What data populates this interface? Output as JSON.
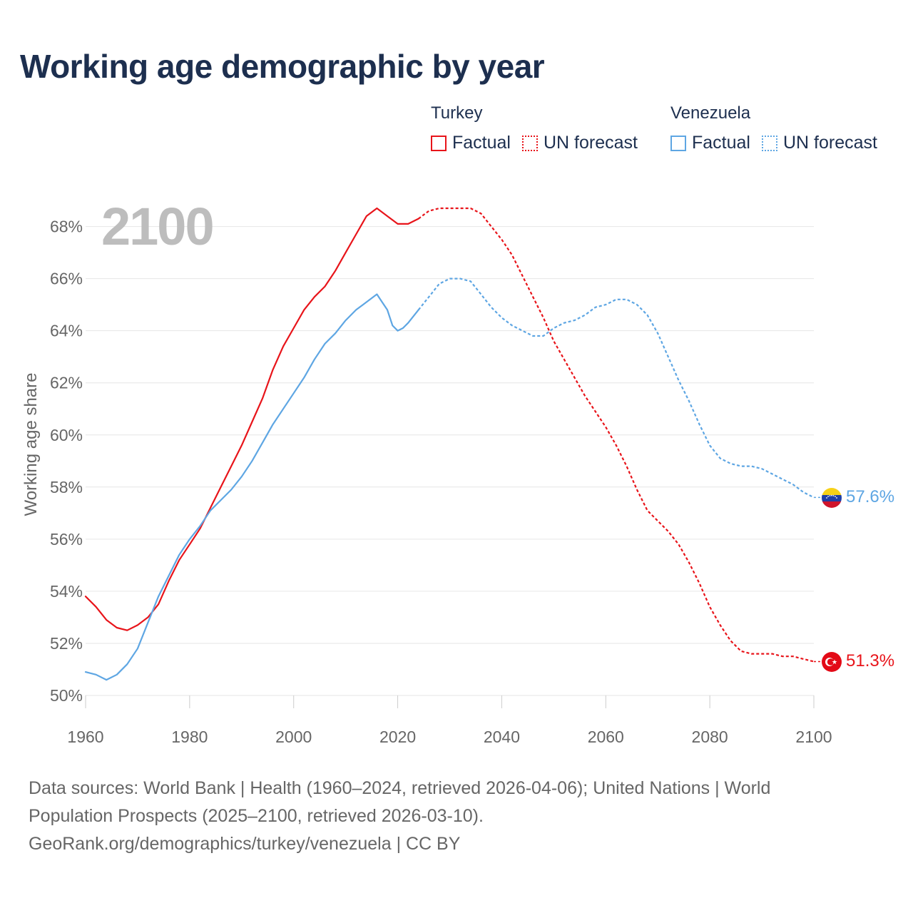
{
  "title": "Working age demographic by year",
  "legend": {
    "groups": [
      {
        "name": "Turkey",
        "factual_label": "Factual",
        "forecast_label": "UN forecast",
        "color": "#e8141a"
      },
      {
        "name": "Venezuela",
        "factual_label": "Factual",
        "forecast_label": "UN forecast",
        "color": "#5ea6e3"
      }
    ]
  },
  "footer": {
    "line1": "Data sources: World Bank | Health (1960–2024, retrieved 2026-04-06); United Nations | World",
    "line2": "Population Prospects (2025–2100, retrieved 2026-03-10).",
    "line3": "GeoRank.org/demographics/turkey/venezuela | CC BY"
  },
  "chart_data": {
    "type": "line",
    "title": "Working age demographic by year",
    "year_label": "2100",
    "xlabel": "",
    "ylabel": "Working age share",
    "xlim": [
      1960,
      2100
    ],
    "ylim": [
      50,
      68.7
    ],
    "x_ticks": [
      1960,
      1980,
      2000,
      2020,
      2040,
      2060,
      2080,
      2100
    ],
    "y_ticks": [
      50,
      52,
      54,
      56,
      58,
      60,
      62,
      64,
      66,
      68
    ],
    "y_tick_labels": [
      "50%",
      "52%",
      "54%",
      "56%",
      "58%",
      "60%",
      "62%",
      "64%",
      "66%",
      "68%"
    ],
    "grid": true,
    "series": [
      {
        "name": "Turkey",
        "color": "#e8141a",
        "end_label": "51.3%",
        "factual": {
          "x": [
            1960,
            1962,
            1964,
            1966,
            1968,
            1970,
            1972,
            1974,
            1976,
            1978,
            1980,
            1982,
            1984,
            1986,
            1988,
            1990,
            1992,
            1994,
            1996,
            1998,
            2000,
            2002,
            2004,
            2006,
            2008,
            2010,
            2012,
            2014,
            2016,
            2018,
            2020,
            2022,
            2024
          ],
          "y": [
            53.8,
            53.4,
            52.9,
            52.6,
            52.5,
            52.7,
            53.0,
            53.5,
            54.4,
            55.2,
            55.8,
            56.4,
            57.2,
            58.0,
            58.8,
            59.6,
            60.5,
            61.4,
            62.5,
            63.4,
            64.1,
            64.8,
            65.3,
            65.7,
            66.3,
            67.0,
            67.7,
            68.4,
            68.7,
            68.4,
            68.1,
            68.1,
            68.3
          ]
        },
        "forecast": {
          "x": [
            2024,
            2026,
            2028,
            2030,
            2032,
            2034,
            2036,
            2038,
            2040,
            2042,
            2044,
            2046,
            2048,
            2050,
            2052,
            2054,
            2056,
            2058,
            2060,
            2062,
            2064,
            2066,
            2068,
            2070,
            2072,
            2074,
            2076,
            2078,
            2080,
            2082,
            2084,
            2086,
            2088,
            2090,
            2092,
            2094,
            2096,
            2098,
            2100
          ],
          "y": [
            68.3,
            68.6,
            68.7,
            68.7,
            68.7,
            68.7,
            68.5,
            68.0,
            67.5,
            66.9,
            66.1,
            65.3,
            64.5,
            63.6,
            62.9,
            62.2,
            61.5,
            60.9,
            60.3,
            59.6,
            58.8,
            57.9,
            57.1,
            56.7,
            56.3,
            55.8,
            55.1,
            54.3,
            53.4,
            52.7,
            52.1,
            51.7,
            51.6,
            51.6,
            51.6,
            51.5,
            51.5,
            51.4,
            51.3
          ]
        }
      },
      {
        "name": "Venezuela",
        "color": "#5ea6e3",
        "end_label": "57.6%",
        "factual": {
          "x": [
            1960,
            1962,
            1964,
            1966,
            1968,
            1970,
            1972,
            1974,
            1976,
            1978,
            1980,
            1982,
            1984,
            1986,
            1988,
            1990,
            1992,
            1994,
            1996,
            1998,
            2000,
            2002,
            2004,
            2006,
            2008,
            2010,
            2012,
            2014,
            2016,
            2017,
            2018,
            2019,
            2020,
            2021,
            2022,
            2024
          ],
          "y": [
            50.9,
            50.8,
            50.6,
            50.8,
            51.2,
            51.8,
            52.8,
            53.8,
            54.6,
            55.4,
            56.0,
            56.5,
            57.1,
            57.5,
            57.9,
            58.4,
            59.0,
            59.7,
            60.4,
            61.0,
            61.6,
            62.2,
            62.9,
            63.5,
            63.9,
            64.4,
            64.8,
            65.1,
            65.4,
            65.1,
            64.8,
            64.2,
            64.0,
            64.1,
            64.3,
            64.8
          ]
        },
        "forecast": {
          "x": [
            2024,
            2026,
            2028,
            2030,
            2032,
            2034,
            2036,
            2038,
            2040,
            2042,
            2044,
            2046,
            2048,
            2050,
            2052,
            2054,
            2056,
            2058,
            2060,
            2062,
            2064,
            2066,
            2068,
            2070,
            2072,
            2074,
            2076,
            2078,
            2080,
            2082,
            2084,
            2086,
            2088,
            2090,
            2092,
            2094,
            2096,
            2098,
            2100
          ],
          "y": [
            64.8,
            65.3,
            65.8,
            66.0,
            66.0,
            65.9,
            65.4,
            64.9,
            64.5,
            64.2,
            64.0,
            63.8,
            63.8,
            64.1,
            64.3,
            64.4,
            64.6,
            64.9,
            65.0,
            65.2,
            65.2,
            65.0,
            64.6,
            63.9,
            63.0,
            62.1,
            61.3,
            60.4,
            59.6,
            59.1,
            58.9,
            58.8,
            58.8,
            58.7,
            58.5,
            58.3,
            58.1,
            57.8,
            57.6
          ]
        }
      }
    ]
  }
}
